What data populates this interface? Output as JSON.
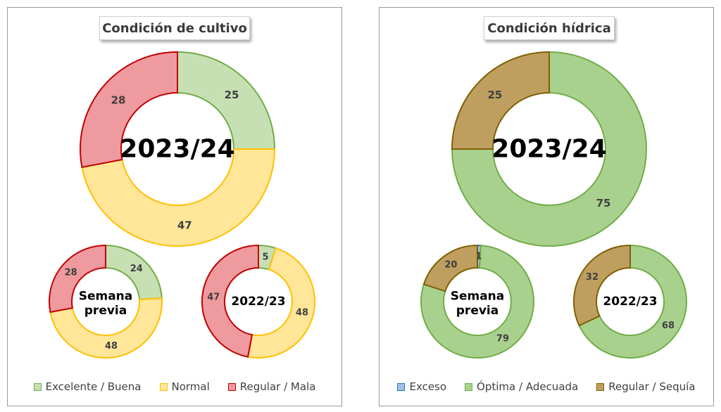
{
  "chart_data": [
    {
      "type": "pie",
      "title": "Condición de cultivo",
      "categories": [
        "Excelente / Buena",
        "Normal",
        "Regular / Mala"
      ],
      "colors": {
        "fill": [
          "#c6e0b4",
          "#ffe699",
          "#ee9a9e"
        ],
        "stroke": [
          "#70ad47",
          "#ffc000",
          "#c00000"
        ]
      },
      "rings": [
        {
          "name": "2023/24",
          "values": [
            25,
            47,
            28
          ]
        },
        {
          "name": "Semana previa",
          "values": [
            24,
            48,
            28
          ]
        },
        {
          "name": "2022/23",
          "values": [
            5,
            48,
            47
          ]
        }
      ]
    },
    {
      "type": "pie",
      "title": "Condición hídrica",
      "categories": [
        "Exceso",
        "Óptima / Adecuada",
        "Regular / Sequía"
      ],
      "colors": {
        "fill": [
          "#9dc3e6",
          "#a9d18e",
          "#bf9f5f"
        ],
        "stroke": [
          "#2e75b6",
          "#70ad47",
          "#7f6000"
        ]
      },
      "rings": [
        {
          "name": "2023/24",
          "values": [
            0,
            75,
            25
          ]
        },
        {
          "name": "Semana previa",
          "values": [
            1,
            79,
            20
          ]
        },
        {
          "name": "2022/23",
          "values": [
            0,
            68,
            32
          ]
        }
      ]
    }
  ]
}
